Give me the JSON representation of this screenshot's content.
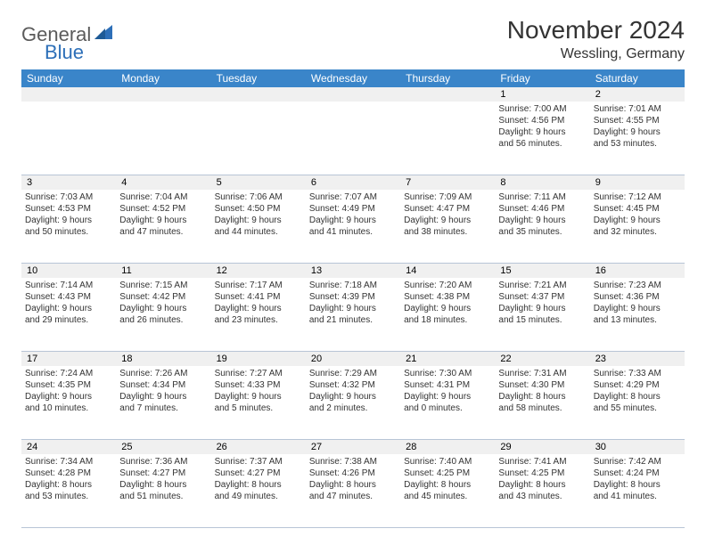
{
  "logo": {
    "line1": "General",
    "line2": "Blue"
  },
  "title": "November 2024",
  "location": "Wessling, Germany",
  "colors": {
    "header_bg": "#3a85c9",
    "header_text": "#ffffff",
    "daynum_bg": "#f0f0f0",
    "border": "#b8c5d6",
    "logo_gray": "#5b5b5b",
    "logo_blue": "#2d6fb8"
  },
  "day_names": [
    "Sunday",
    "Monday",
    "Tuesday",
    "Wednesday",
    "Thursday",
    "Friday",
    "Saturday"
  ],
  "weeks": [
    [
      {
        "n": "",
        "sr": "",
        "ss": "",
        "dl1": "",
        "dl2": ""
      },
      {
        "n": "",
        "sr": "",
        "ss": "",
        "dl1": "",
        "dl2": ""
      },
      {
        "n": "",
        "sr": "",
        "ss": "",
        "dl1": "",
        "dl2": ""
      },
      {
        "n": "",
        "sr": "",
        "ss": "",
        "dl1": "",
        "dl2": ""
      },
      {
        "n": "",
        "sr": "",
        "ss": "",
        "dl1": "",
        "dl2": ""
      },
      {
        "n": "1",
        "sr": "Sunrise: 7:00 AM",
        "ss": "Sunset: 4:56 PM",
        "dl1": "Daylight: 9 hours",
        "dl2": "and 56 minutes."
      },
      {
        "n": "2",
        "sr": "Sunrise: 7:01 AM",
        "ss": "Sunset: 4:55 PM",
        "dl1": "Daylight: 9 hours",
        "dl2": "and 53 minutes."
      }
    ],
    [
      {
        "n": "3",
        "sr": "Sunrise: 7:03 AM",
        "ss": "Sunset: 4:53 PM",
        "dl1": "Daylight: 9 hours",
        "dl2": "and 50 minutes."
      },
      {
        "n": "4",
        "sr": "Sunrise: 7:04 AM",
        "ss": "Sunset: 4:52 PM",
        "dl1": "Daylight: 9 hours",
        "dl2": "and 47 minutes."
      },
      {
        "n": "5",
        "sr": "Sunrise: 7:06 AM",
        "ss": "Sunset: 4:50 PM",
        "dl1": "Daylight: 9 hours",
        "dl2": "and 44 minutes."
      },
      {
        "n": "6",
        "sr": "Sunrise: 7:07 AM",
        "ss": "Sunset: 4:49 PM",
        "dl1": "Daylight: 9 hours",
        "dl2": "and 41 minutes."
      },
      {
        "n": "7",
        "sr": "Sunrise: 7:09 AM",
        "ss": "Sunset: 4:47 PM",
        "dl1": "Daylight: 9 hours",
        "dl2": "and 38 minutes."
      },
      {
        "n": "8",
        "sr": "Sunrise: 7:11 AM",
        "ss": "Sunset: 4:46 PM",
        "dl1": "Daylight: 9 hours",
        "dl2": "and 35 minutes."
      },
      {
        "n": "9",
        "sr": "Sunrise: 7:12 AM",
        "ss": "Sunset: 4:45 PM",
        "dl1": "Daylight: 9 hours",
        "dl2": "and 32 minutes."
      }
    ],
    [
      {
        "n": "10",
        "sr": "Sunrise: 7:14 AM",
        "ss": "Sunset: 4:43 PM",
        "dl1": "Daylight: 9 hours",
        "dl2": "and 29 minutes."
      },
      {
        "n": "11",
        "sr": "Sunrise: 7:15 AM",
        "ss": "Sunset: 4:42 PM",
        "dl1": "Daylight: 9 hours",
        "dl2": "and 26 minutes."
      },
      {
        "n": "12",
        "sr": "Sunrise: 7:17 AM",
        "ss": "Sunset: 4:41 PM",
        "dl1": "Daylight: 9 hours",
        "dl2": "and 23 minutes."
      },
      {
        "n": "13",
        "sr": "Sunrise: 7:18 AM",
        "ss": "Sunset: 4:39 PM",
        "dl1": "Daylight: 9 hours",
        "dl2": "and 21 minutes."
      },
      {
        "n": "14",
        "sr": "Sunrise: 7:20 AM",
        "ss": "Sunset: 4:38 PM",
        "dl1": "Daylight: 9 hours",
        "dl2": "and 18 minutes."
      },
      {
        "n": "15",
        "sr": "Sunrise: 7:21 AM",
        "ss": "Sunset: 4:37 PM",
        "dl1": "Daylight: 9 hours",
        "dl2": "and 15 minutes."
      },
      {
        "n": "16",
        "sr": "Sunrise: 7:23 AM",
        "ss": "Sunset: 4:36 PM",
        "dl1": "Daylight: 9 hours",
        "dl2": "and 13 minutes."
      }
    ],
    [
      {
        "n": "17",
        "sr": "Sunrise: 7:24 AM",
        "ss": "Sunset: 4:35 PM",
        "dl1": "Daylight: 9 hours",
        "dl2": "and 10 minutes."
      },
      {
        "n": "18",
        "sr": "Sunrise: 7:26 AM",
        "ss": "Sunset: 4:34 PM",
        "dl1": "Daylight: 9 hours",
        "dl2": "and 7 minutes."
      },
      {
        "n": "19",
        "sr": "Sunrise: 7:27 AM",
        "ss": "Sunset: 4:33 PM",
        "dl1": "Daylight: 9 hours",
        "dl2": "and 5 minutes."
      },
      {
        "n": "20",
        "sr": "Sunrise: 7:29 AM",
        "ss": "Sunset: 4:32 PM",
        "dl1": "Daylight: 9 hours",
        "dl2": "and 2 minutes."
      },
      {
        "n": "21",
        "sr": "Sunrise: 7:30 AM",
        "ss": "Sunset: 4:31 PM",
        "dl1": "Daylight: 9 hours",
        "dl2": "and 0 minutes."
      },
      {
        "n": "22",
        "sr": "Sunrise: 7:31 AM",
        "ss": "Sunset: 4:30 PM",
        "dl1": "Daylight: 8 hours",
        "dl2": "and 58 minutes."
      },
      {
        "n": "23",
        "sr": "Sunrise: 7:33 AM",
        "ss": "Sunset: 4:29 PM",
        "dl1": "Daylight: 8 hours",
        "dl2": "and 55 minutes."
      }
    ],
    [
      {
        "n": "24",
        "sr": "Sunrise: 7:34 AM",
        "ss": "Sunset: 4:28 PM",
        "dl1": "Daylight: 8 hours",
        "dl2": "and 53 minutes."
      },
      {
        "n": "25",
        "sr": "Sunrise: 7:36 AM",
        "ss": "Sunset: 4:27 PM",
        "dl1": "Daylight: 8 hours",
        "dl2": "and 51 minutes."
      },
      {
        "n": "26",
        "sr": "Sunrise: 7:37 AM",
        "ss": "Sunset: 4:27 PM",
        "dl1": "Daylight: 8 hours",
        "dl2": "and 49 minutes."
      },
      {
        "n": "27",
        "sr": "Sunrise: 7:38 AM",
        "ss": "Sunset: 4:26 PM",
        "dl1": "Daylight: 8 hours",
        "dl2": "and 47 minutes."
      },
      {
        "n": "28",
        "sr": "Sunrise: 7:40 AM",
        "ss": "Sunset: 4:25 PM",
        "dl1": "Daylight: 8 hours",
        "dl2": "and 45 minutes."
      },
      {
        "n": "29",
        "sr": "Sunrise: 7:41 AM",
        "ss": "Sunset: 4:25 PM",
        "dl1": "Daylight: 8 hours",
        "dl2": "and 43 minutes."
      },
      {
        "n": "30",
        "sr": "Sunrise: 7:42 AM",
        "ss": "Sunset: 4:24 PM",
        "dl1": "Daylight: 8 hours",
        "dl2": "and 41 minutes."
      }
    ]
  ]
}
